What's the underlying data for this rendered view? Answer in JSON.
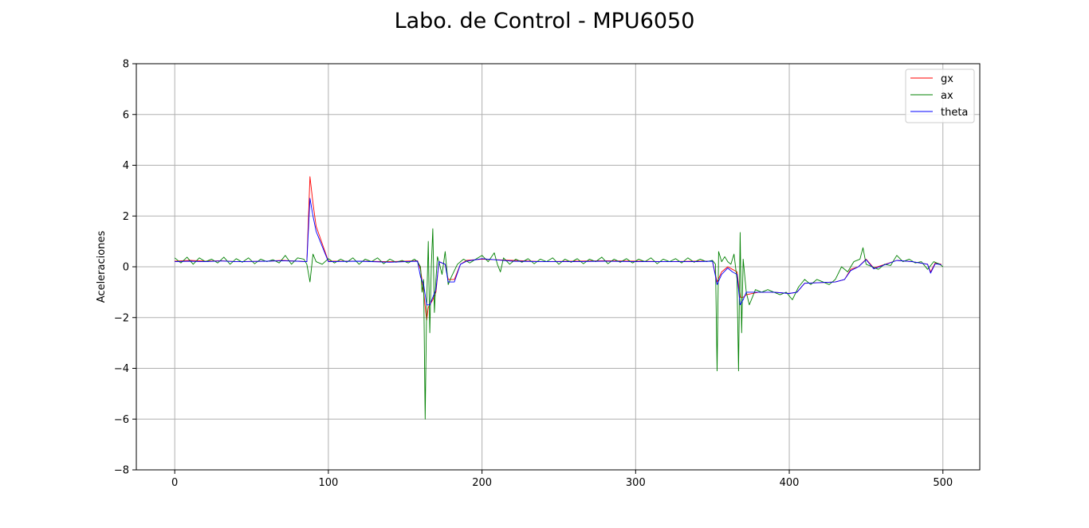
{
  "chart_data": {
    "type": "line",
    "title": "Labo. de Control - MPU6050",
    "xlabel": "",
    "ylabel": "Aceleraciones",
    "xlim": [
      -25,
      524
    ],
    "ylim": [
      -8,
      8
    ],
    "xticks": [
      0,
      100,
      200,
      300,
      400,
      500
    ],
    "yticks": [
      -8,
      -6,
      -4,
      -2,
      0,
      2,
      4,
      6,
      8
    ],
    "grid": true,
    "legend": "top-right",
    "series": [
      {
        "name": "gx",
        "color": "#ff0000",
        "x": [
          0,
          10,
          20,
          30,
          40,
          50,
          60,
          70,
          80,
          86,
          88,
          90,
          92,
          100,
          120,
          140,
          158,
          160,
          162,
          164,
          165,
          168,
          170,
          172,
          176,
          178,
          182,
          186,
          190,
          200,
          220,
          240,
          260,
          280,
          300,
          320,
          340,
          350,
          353,
          356,
          360,
          363,
          366,
          368,
          370,
          372,
          380,
          390,
          400,
          405,
          410,
          430,
          436,
          440,
          445,
          450,
          455,
          470,
          480,
          490,
          492,
          495,
          499
        ],
        "y": [
          0.22,
          0.25,
          0.22,
          0.24,
          0.2,
          0.21,
          0.22,
          0.25,
          0.22,
          0.2,
          3.55,
          2.5,
          1.6,
          0.22,
          0.22,
          0.2,
          0.24,
          -0.1,
          -1.0,
          -2.1,
          -1.6,
          -1.3,
          -1.0,
          0.2,
          0.1,
          -0.5,
          -0.5,
          0.1,
          0.25,
          0.3,
          0.25,
          0.2,
          0.22,
          0.24,
          0.22,
          0.2,
          0.22,
          0.22,
          -0.6,
          -0.2,
          0.0,
          -0.1,
          -0.2,
          -1.2,
          -1.2,
          -1.1,
          -1.0,
          -1.0,
          -1.05,
          -1.0,
          -0.65,
          -0.6,
          -0.5,
          -0.1,
          0.0,
          0.3,
          -0.05,
          0.25,
          0.2,
          0.1,
          -0.2,
          0.15,
          0.1
        ]
      },
      {
        "name": "ax",
        "color": "#008000",
        "x": [
          0,
          4,
          8,
          12,
          16,
          20,
          24,
          28,
          32,
          36,
          40,
          44,
          48,
          52,
          56,
          60,
          64,
          68,
          72,
          76,
          80,
          84,
          86,
          88,
          90,
          92,
          96,
          100,
          104,
          108,
          112,
          116,
          120,
          124,
          128,
          132,
          136,
          140,
          144,
          148,
          152,
          156,
          158,
          160,
          161,
          162,
          163,
          164,
          165,
          166,
          167,
          168,
          169,
          170,
          171,
          172,
          174,
          176,
          178,
          180,
          184,
          188,
          192,
          196,
          200,
          204,
          208,
          210,
          212,
          214,
          218,
          222,
          226,
          230,
          234,
          238,
          242,
          246,
          250,
          254,
          258,
          262,
          266,
          270,
          274,
          278,
          282,
          286,
          290,
          294,
          298,
          302,
          306,
          310,
          314,
          318,
          322,
          326,
          330,
          334,
          338,
          342,
          346,
          350,
          352,
          353,
          354,
          356,
          358,
          360,
          362,
          364,
          366,
          367,
          368,
          369,
          370,
          372,
          374,
          378,
          382,
          386,
          390,
          394,
          398,
          402,
          406,
          410,
          414,
          418,
          422,
          426,
          430,
          434,
          438,
          442,
          446,
          448,
          450,
          454,
          458,
          462,
          466,
          470,
          474,
          478,
          482,
          486,
          490,
          494,
          498,
          500
        ],
        "y": [
          0.35,
          0.15,
          0.38,
          0.1,
          0.35,
          0.2,
          0.3,
          0.15,
          0.38,
          0.1,
          0.32,
          0.18,
          0.35,
          0.12,
          0.3,
          0.2,
          0.28,
          0.15,
          0.45,
          0.1,
          0.35,
          0.3,
          0.1,
          -0.6,
          0.5,
          0.2,
          0.1,
          0.32,
          0.15,
          0.3,
          0.18,
          0.35,
          0.1,
          0.3,
          0.2,
          0.35,
          0.12,
          0.3,
          0.18,
          0.25,
          0.15,
          0.3,
          0.2,
          0.0,
          -1.0,
          -0.5,
          -6.0,
          -1.5,
          1.0,
          -2.6,
          0.0,
          1.5,
          -1.8,
          -0.5,
          0.4,
          0.2,
          -0.3,
          0.6,
          -0.7,
          -0.4,
          0.1,
          0.3,
          0.15,
          0.3,
          0.45,
          0.2,
          0.55,
          0.1,
          -0.2,
          0.35,
          0.1,
          0.3,
          0.18,
          0.32,
          0.12,
          0.3,
          0.2,
          0.35,
          0.1,
          0.3,
          0.18,
          0.32,
          0.12,
          0.3,
          0.2,
          0.38,
          0.12,
          0.3,
          0.18,
          0.32,
          0.15,
          0.3,
          0.2,
          0.35,
          0.12,
          0.3,
          0.2,
          0.32,
          0.15,
          0.35,
          0.18,
          0.3,
          0.2,
          0.25,
          0.1,
          -4.1,
          0.6,
          0.2,
          0.4,
          0.2,
          0.1,
          0.5,
          -0.5,
          -4.1,
          1.35,
          -2.6,
          0.3,
          -1.0,
          -1.5,
          -0.9,
          -1.0,
          -0.9,
          -1.0,
          -1.1,
          -1.0,
          -1.3,
          -0.8,
          -0.5,
          -0.7,
          -0.5,
          -0.6,
          -0.7,
          -0.5,
          0.0,
          -0.2,
          0.2,
          0.3,
          0.75,
          0.1,
          0.0,
          -0.1,
          0.1,
          0.05,
          0.45,
          0.2,
          0.3,
          0.15,
          0.2,
          -0.1,
          0.2,
          0.1,
          0.0
        ]
      },
      {
        "name": "theta",
        "color": "#0000ff",
        "x": [
          0,
          10,
          20,
          30,
          40,
          50,
          60,
          70,
          80,
          86,
          88,
          90,
          92,
          100,
          120,
          140,
          158,
          160,
          162,
          164,
          166,
          168,
          170,
          172,
          176,
          178,
          182,
          186,
          190,
          200,
          220,
          240,
          260,
          280,
          300,
          320,
          340,
          350,
          353,
          356,
          360,
          363,
          366,
          368,
          370,
          372,
          380,
          390,
          400,
          405,
          410,
          430,
          436,
          440,
          445,
          450,
          455,
          470,
          480,
          490,
          492,
          495,
          499
        ],
        "y": [
          0.2,
          0.22,
          0.2,
          0.23,
          0.2,
          0.21,
          0.22,
          0.24,
          0.22,
          0.2,
          2.7,
          2.0,
          1.4,
          0.2,
          0.22,
          0.18,
          0.22,
          -0.4,
          -0.7,
          -1.5,
          -1.5,
          -1.2,
          -0.9,
          0.2,
          0.1,
          -0.6,
          -0.6,
          0.1,
          0.22,
          0.32,
          0.22,
          0.2,
          0.2,
          0.22,
          0.2,
          0.2,
          0.2,
          0.22,
          -0.7,
          -0.3,
          -0.05,
          -0.2,
          -0.3,
          -1.5,
          -1.3,
          -1.0,
          -1.0,
          -1.0,
          -1.05,
          -1.0,
          -0.65,
          -0.6,
          -0.5,
          -0.15,
          0.0,
          0.28,
          -0.08,
          0.25,
          0.2,
          0.1,
          -0.25,
          0.12,
          0.08
        ]
      }
    ]
  }
}
